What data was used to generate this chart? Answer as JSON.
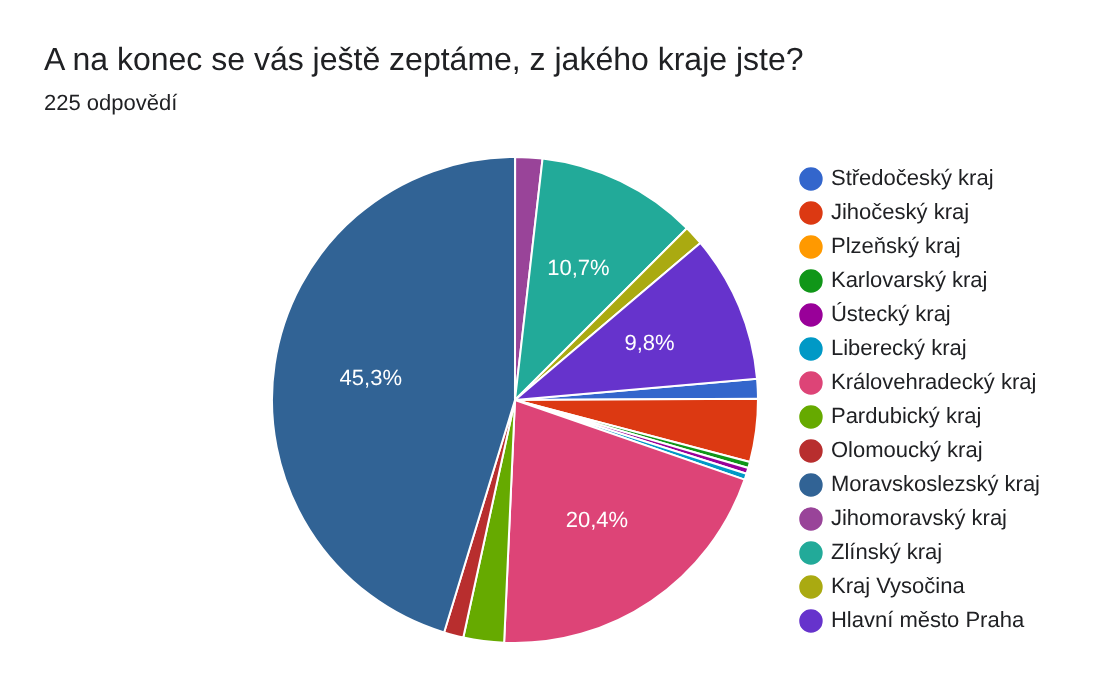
{
  "chart_data": {
    "type": "pie",
    "title": "A na konec se vás ještě zeptáme, z jakého kraje jste?",
    "subtitle": "225 odpovědí",
    "categories": [
      "Středočeský kraj",
      "Jihočeský kraj",
      "Plzeňský kraj",
      "Karlovarský kraj",
      "Ústecký kraj",
      "Liberecký kraj",
      "Královehradecký kraj",
      "Pardubický kraj",
      "Olomoucký kraj",
      "Moravskoslezský kraj",
      "Jihomoravský kraj",
      "Zlínský kraj",
      "Kraj Vysočina",
      "Hlavní město Praha"
    ],
    "values": [
      1.3,
      4.2,
      0,
      0.4,
      0.4,
      0.4,
      20.4,
      2.7,
      1.3,
      45.3,
      1.8,
      10.7,
      1.3,
      9.8
    ],
    "colors": [
      "#3366cc",
      "#dc3912",
      "#ff9900",
      "#109618",
      "#990099",
      "#0099c6",
      "#dd4477",
      "#66aa00",
      "#b82e2e",
      "#316395",
      "#994499",
      "#22aa99",
      "#aaaa11",
      "#6633cc"
    ],
    "value_labels": [
      null,
      null,
      null,
      null,
      null,
      null,
      "20,4%",
      null,
      null,
      "45,3%",
      null,
      "10,7%",
      null,
      "9,8%"
    ],
    "legend": "right"
  }
}
